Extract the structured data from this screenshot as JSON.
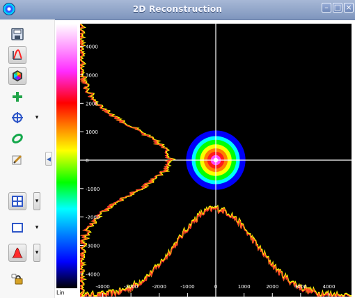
{
  "window": {
    "title": "2D Reconstruction"
  },
  "toolbar": {
    "items": [
      {
        "icon": "save-icon"
      },
      {
        "icon": "profile-icon"
      },
      {
        "icon": "colormap-icon"
      },
      {
        "icon": "add-icon"
      },
      {
        "icon": "crosshair-icon"
      },
      {
        "icon": "ellipse-icon"
      },
      {
        "icon": "edit-icon"
      },
      {
        "icon": "grid-icon"
      },
      {
        "icon": "rectangle-icon"
      },
      {
        "icon": "gaussian-icon"
      },
      {
        "icon": "lock-icon"
      }
    ]
  },
  "colorbar": {
    "scale_label": "Lin"
  },
  "chart_data": {
    "type": "heatmap",
    "x": {
      "ticks": [
        -4000,
        -3000,
        -2000,
        -1000,
        0,
        1000,
        2000,
        3000,
        4000
      ],
      "tick_labels": [
        "-4000",
        "-3000",
        "-2000",
        "-1000",
        "0",
        "1000",
        "2000",
        "3000",
        "4000"
      ],
      "range": [
        -4800,
        4800
      ]
    },
    "y": {
      "ticks": [
        4000,
        3000,
        2000,
        1000,
        0,
        -1000,
        -2000,
        -3000,
        -4000
      ],
      "tick_labels": [
        "4000",
        "3000",
        "2000",
        "1000",
        "0",
        "-1000",
        "-2000",
        "-3000",
        "-4000"
      ],
      "range": [
        -4800,
        4800
      ]
    },
    "crosshair": {
      "x": 0,
      "y": 0
    },
    "profile_x": {
      "center": 0,
      "sigma": 1400,
      "points": [
        {
          "x": -4000,
          "y": 0.0
        },
        {
          "x": -3000,
          "y": 0.04
        },
        {
          "x": -2500,
          "y": 0.12
        },
        {
          "x": -2000,
          "y": 0.28
        },
        {
          "x": -1500,
          "y": 0.52
        },
        {
          "x": -1000,
          "y": 0.78
        },
        {
          "x": -500,
          "y": 0.94
        },
        {
          "x": 0,
          "y": 1.0
        },
        {
          "x": 500,
          "y": 0.94
        },
        {
          "x": 1000,
          "y": 0.78
        },
        {
          "x": 1500,
          "y": 0.52
        },
        {
          "x": 2000,
          "y": 0.28
        },
        {
          "x": 2500,
          "y": 0.12
        },
        {
          "x": 3000,
          "y": 0.04
        },
        {
          "x": 4000,
          "y": 0.0
        }
      ]
    },
    "profile_y": {
      "center": 0,
      "sigma": 1100,
      "points": [
        {
          "y": 4000,
          "x": 0.0
        },
        {
          "y": 3000,
          "x": 0.01
        },
        {
          "y": 2500,
          "x": 0.05
        },
        {
          "y": 2000,
          "x": 0.14
        },
        {
          "y": 1500,
          "x": 0.31
        },
        {
          "y": 1000,
          "x": 0.58
        },
        {
          "y": 500,
          "x": 0.86
        },
        {
          "y": 0,
          "x": 1.0
        },
        {
          "y": -500,
          "x": 0.86
        },
        {
          "y": -1000,
          "x": 0.58
        },
        {
          "y": -1500,
          "x": 0.31
        },
        {
          "y": -2000,
          "x": 0.14
        },
        {
          "y": -2500,
          "x": 0.05
        },
        {
          "y": -3000,
          "x": 0.01
        },
        {
          "y": -4000,
          "x": 0.0
        }
      ]
    },
    "beam": {
      "center": {
        "x": 0,
        "y": 0
      },
      "radius_levels": [
        {
          "r": 1050,
          "color": "#0000ff"
        },
        {
          "r": 850,
          "color": "#00ffff"
        },
        {
          "r": 720,
          "color": "#00ff00"
        },
        {
          "r": 560,
          "color": "#ffff00"
        },
        {
          "r": 420,
          "color": "#ff7a00"
        },
        {
          "r": 300,
          "color": "#ff1a1a"
        },
        {
          "r": 180,
          "color": "#ff4bff"
        },
        {
          "r": 80,
          "color": "#ffffff"
        }
      ]
    },
    "colors": {
      "background": "#000000",
      "grid": "#ffffff",
      "profile_outer": "#ffff00",
      "profile_inner": "#ff2d2d"
    }
  }
}
